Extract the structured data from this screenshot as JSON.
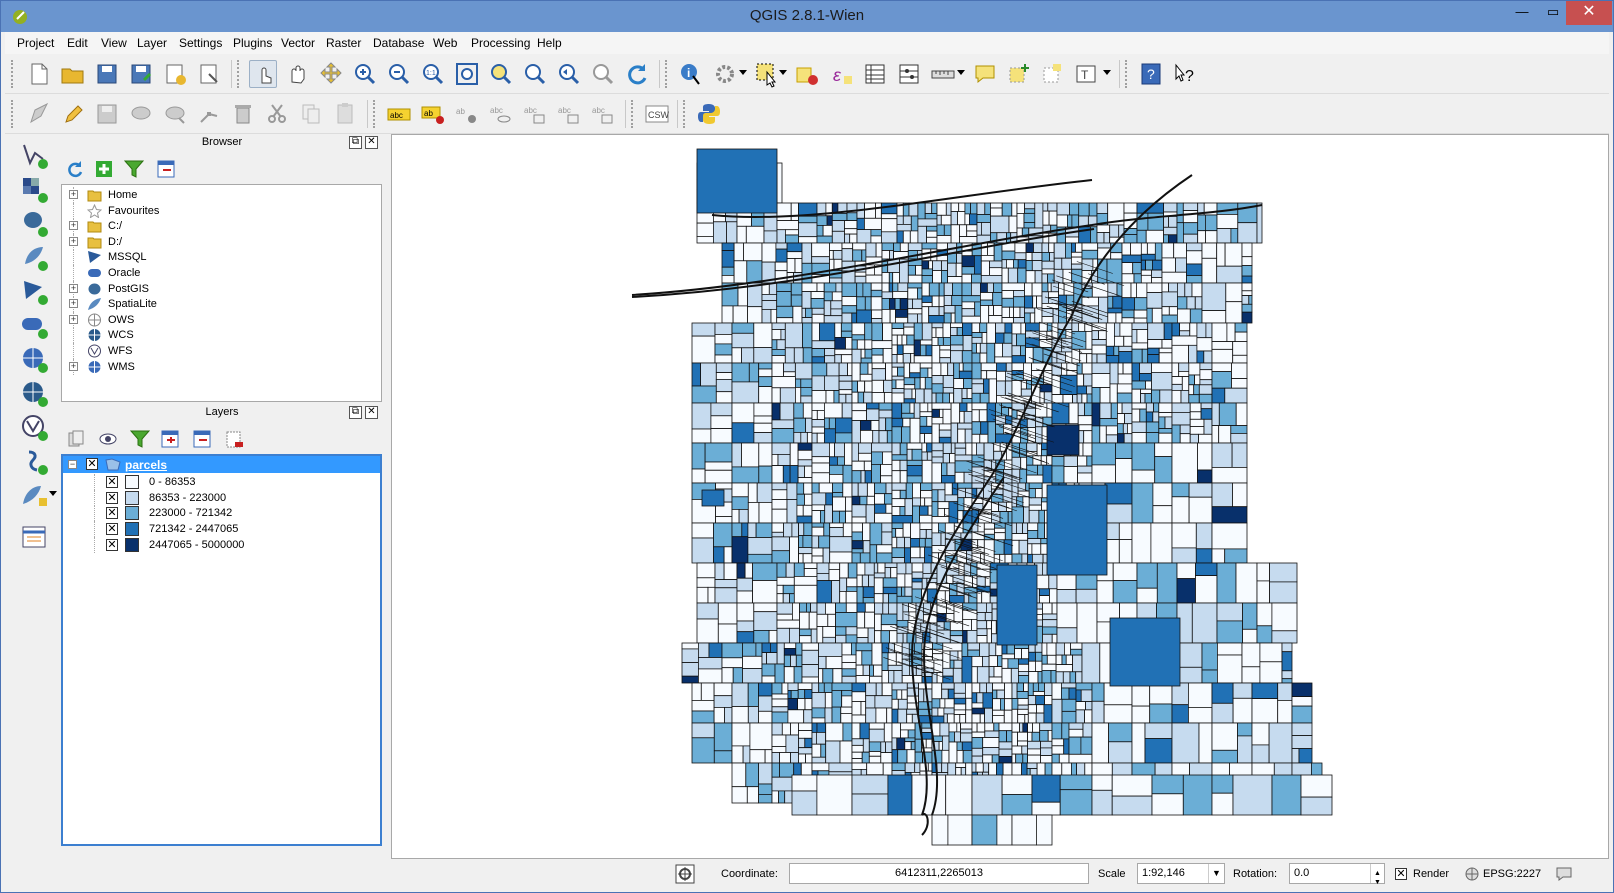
{
  "window": {
    "title": "QGIS 2.8.1-Wien",
    "minimize": "—",
    "maximize": "▭",
    "close": "✕"
  },
  "menu": [
    "Project",
    "Edit",
    "View",
    "Layer",
    "Settings",
    "Plugins",
    "Vector",
    "Raster",
    "Database",
    "Web",
    "Processing",
    "Help"
  ],
  "browser": {
    "title": "Browser",
    "items": [
      {
        "label": "Home",
        "icon": "folder-icon",
        "expandable": true
      },
      {
        "label": "Favourites",
        "icon": "star-icon",
        "expandable": false
      },
      {
        "label": "C:/",
        "icon": "folder-icon",
        "expandable": true
      },
      {
        "label": "D:/",
        "icon": "folder-icon",
        "expandable": true
      },
      {
        "label": "MSSQL",
        "icon": "mssql-icon",
        "expandable": false
      },
      {
        "label": "Oracle",
        "icon": "oracle-icon",
        "expandable": false
      },
      {
        "label": "PostGIS",
        "icon": "postgis-icon",
        "expandable": true
      },
      {
        "label": "SpatiaLite",
        "icon": "spatialite-icon",
        "expandable": true
      },
      {
        "label": "OWS",
        "icon": "ows-icon",
        "expandable": true
      },
      {
        "label": "WCS",
        "icon": "wcs-icon",
        "expandable": false
      },
      {
        "label": "WFS",
        "icon": "wfs-icon",
        "expandable": false
      },
      {
        "label": "WMS",
        "icon": "wms-icon",
        "expandable": true
      }
    ]
  },
  "layers": {
    "title": "Layers",
    "layer_name": "parcels",
    "legend": [
      {
        "label": "0 - 86353",
        "color": "#f7fbff"
      },
      {
        "label": "86353 - 223000",
        "color": "#c6dbef"
      },
      {
        "label": "223000 - 721342",
        "color": "#6baed6"
      },
      {
        "label": "721342 - 2447065",
        "color": "#2171b5"
      },
      {
        "label": "2447065 - 5000000",
        "color": "#08306b"
      }
    ]
  },
  "status": {
    "coordinate_label": "Coordinate:",
    "coordinate_value": "6412311,2265013",
    "scale_label": "Scale",
    "scale_value": "1:92,146",
    "rotation_label": "Rotation:",
    "rotation_value": "0.0",
    "render_label": "Render",
    "crs": "EPSG:2227"
  },
  "colors": {
    "titlebar": "#6a95cf",
    "selection": "#3399ff",
    "close": "#c75050"
  }
}
